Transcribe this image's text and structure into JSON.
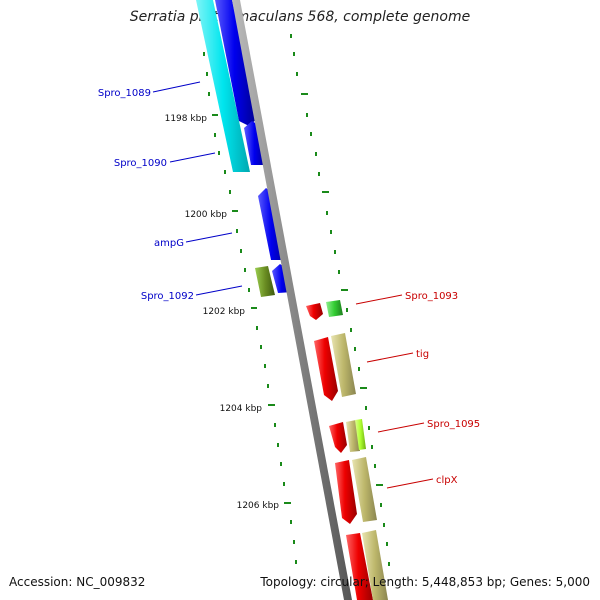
{
  "title": "Serratia proteamaculans 568, complete genome",
  "footer": {
    "accession": "Accession: NC_009832",
    "summary": "Topology: circular; Length: 5,448,853 bp; Genes: 5,000"
  },
  "colors": {
    "backbone": "#888888",
    "tick": "#1a8a1a",
    "left_label": "#0000c8",
    "right_label": "#c80000",
    "cyan": "#00e5ee",
    "blue": "#0000ee",
    "olive_dark": "#6b8e23",
    "red": "#ee0000",
    "green": "#32cd32",
    "khaki": "#bdb76b",
    "lime": "#adff2f"
  },
  "kbp_labels": [
    "1198 kbp",
    "1200 kbp",
    "1202 kbp",
    "1204 kbp",
    "1206 kbp"
  ],
  "left_genes": [
    {
      "name": "Spro_1089"
    },
    {
      "name": "Spro_1090"
    },
    {
      "name": "ampG"
    },
    {
      "name": "Spro_1092"
    }
  ],
  "right_genes": [
    {
      "name": "Spro_1093"
    },
    {
      "name": "tig"
    },
    {
      "name": "Spro_1095"
    },
    {
      "name": "clpX"
    }
  ]
}
